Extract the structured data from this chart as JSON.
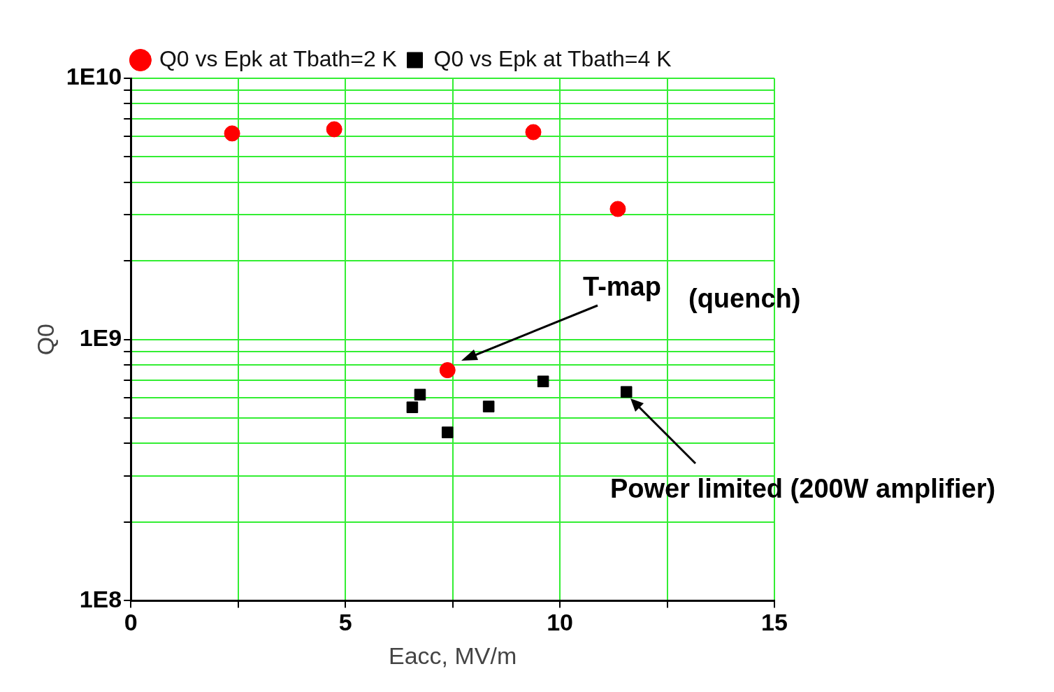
{
  "chart_data": {
    "type": "scatter",
    "xlabel": "Eacc, MV/m",
    "ylabel": "Q0",
    "xlim": [
      0,
      15
    ],
    "xticks": [
      0,
      {
        "value": 2.5,
        "label": null
      },
      5,
      {
        "value": 7.5,
        "label": null
      },
      10,
      {
        "value": 12.5,
        "label": null
      },
      15
    ],
    "ylim": [
      100000000,
      10000000000
    ],
    "log": "y",
    "yticks": [
      {
        "value": 100000000,
        "label": "1E8"
      },
      {
        "value": 200000000,
        "label": null
      },
      {
        "value": 300000000,
        "label": null
      },
      {
        "value": 400000000,
        "label": null
      },
      {
        "value": 500000000,
        "label": null
      },
      {
        "value": 600000000,
        "label": null
      },
      {
        "value": 700000000,
        "label": null
      },
      {
        "value": 800000000,
        "label": null
      },
      {
        "value": 900000000,
        "label": null
      },
      {
        "value": 1000000000,
        "label": "1E9"
      },
      {
        "value": 2000000000,
        "label": null
      },
      {
        "value": 3000000000,
        "label": null
      },
      {
        "value": 4000000000,
        "label": null
      },
      {
        "value": 5000000000,
        "label": null
      },
      {
        "value": 6000000000,
        "label": null
      },
      {
        "value": 7000000000,
        "label": null
      },
      {
        "value": 8000000000,
        "label": null
      },
      {
        "value": 9000000000,
        "label": null
      },
      {
        "value": 10000000000,
        "label": "1E10"
      }
    ],
    "grid": true,
    "legend": "top",
    "series": [
      {
        "name": "Q0 vs Epk at Tbath=2 K",
        "color": "#ff0000",
        "marker": "circle",
        "x": [
          2.36,
          4.74,
          9.38,
          11.35,
          7.38
        ],
        "values": [
          6150000000,
          6380000000,
          6220000000,
          3160000000,
          763000000
        ]
      },
      {
        "name": "Q0 vs Epk at Tbath=4 K",
        "color": "#000000",
        "marker": "square",
        "x": [
          6.56,
          6.74,
          7.38,
          8.34,
          9.61,
          11.55
        ],
        "values": [
          550000000,
          615000000,
          441000000,
          554000000,
          691000000,
          630000000
        ]
      }
    ],
    "annotations": [
      "T-map",
      "(quench)",
      "Power limited (200W amplifier)"
    ]
  }
}
